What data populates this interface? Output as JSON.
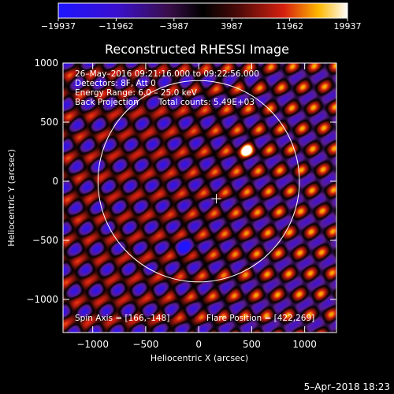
{
  "chart_data": {
    "type": "heatmap",
    "title": "Reconstructed RHESSI Image",
    "xlabel": "Heliocentric X (arcsec)",
    "ylabel": "Heliocentric Y (arcsec)",
    "xlim": [
      -1280,
      1300
    ],
    "ylim": [
      -1280,
      1000
    ],
    "xticks": [
      -1000,
      -500,
      0,
      500,
      1000
    ],
    "xtick_labels": [
      "−1000",
      "−500",
      "0",
      "500",
      "1000"
    ],
    "yticks": [
      1000,
      500,
      0,
      -500,
      -1000
    ],
    "ytick_labels": [
      "1000",
      "500",
      "0",
      "−500",
      "−1000"
    ],
    "colorbar": {
      "range": [
        -19937,
        19937
      ],
      "ticks": [
        -19937,
        -11962,
        -3987,
        3987,
        11962,
        19937
      ],
      "tick_labels": [
        "−19937",
        "−11962",
        "−3987",
        "3987",
        "11962",
        "19937"
      ]
    },
    "annotations": [
      "26–May–2016 09:21:16.000 to 09:22:56.000",
      "Detectors: 8F, Att 0",
      "Energy Range: 6.0 – 25.0 keV",
      "Back Projection",
      "Total counts: 5.49E+03",
      "Spin Axis = [166,–148]",
      "Flare Position = [422,269]"
    ],
    "sources": [
      {
        "kind": "positive",
        "x": 440,
        "y": 265
      },
      {
        "kind": "negative",
        "x": -130,
        "y": -555
      }
    ],
    "solar_limb_radius_arcsec": 950,
    "spin_axis_marker": {
      "x": 166,
      "y": -148
    },
    "grid": false,
    "colors": {
      "negative": "#1e14ff",
      "neutral": "#000000",
      "mid_positive": "#d62010",
      "high_positive": "#ffffff",
      "limb": "#ffffff"
    }
  },
  "footer": {
    "timestamp": "5–Apr–2018 18:23"
  }
}
